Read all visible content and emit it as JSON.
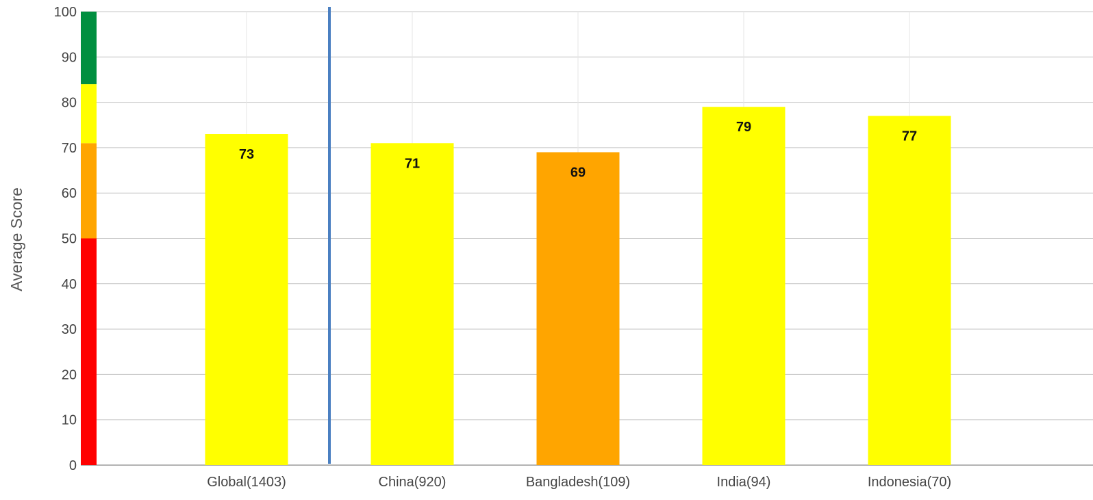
{
  "chart_data": {
    "type": "bar",
    "ylabel": "Average Score",
    "xlabel": "",
    "title": "",
    "ylim": [
      0,
      100
    ],
    "yticks": [
      0,
      10,
      20,
      30,
      40,
      50,
      60,
      70,
      80,
      90,
      100
    ],
    "grid": "horizontal and vertical",
    "categories": [
      "Global(1403)",
      "China(920)",
      "Bangladesh(109)",
      "India(94)",
      "Indonesia(70)"
    ],
    "values": [
      73,
      71,
      69,
      79,
      77
    ],
    "data_labels": [
      "73",
      "71",
      "69",
      "79",
      "77"
    ],
    "bar_colors": [
      "#ffff00",
      "#ffff00",
      "#ffa500",
      "#ffff00",
      "#ffff00"
    ],
    "separator_after_category": "Global(1403)",
    "separator_color": "#4a7fc1",
    "score_bands": [
      {
        "from": 0,
        "to": 50,
        "color": "#ff0000"
      },
      {
        "from": 50,
        "to": 71,
        "color": "#ffa500"
      },
      {
        "from": 71,
        "to": 84,
        "color": "#ffff00"
      },
      {
        "from": 84,
        "to": 100,
        "color": "#008f3f"
      }
    ]
  }
}
